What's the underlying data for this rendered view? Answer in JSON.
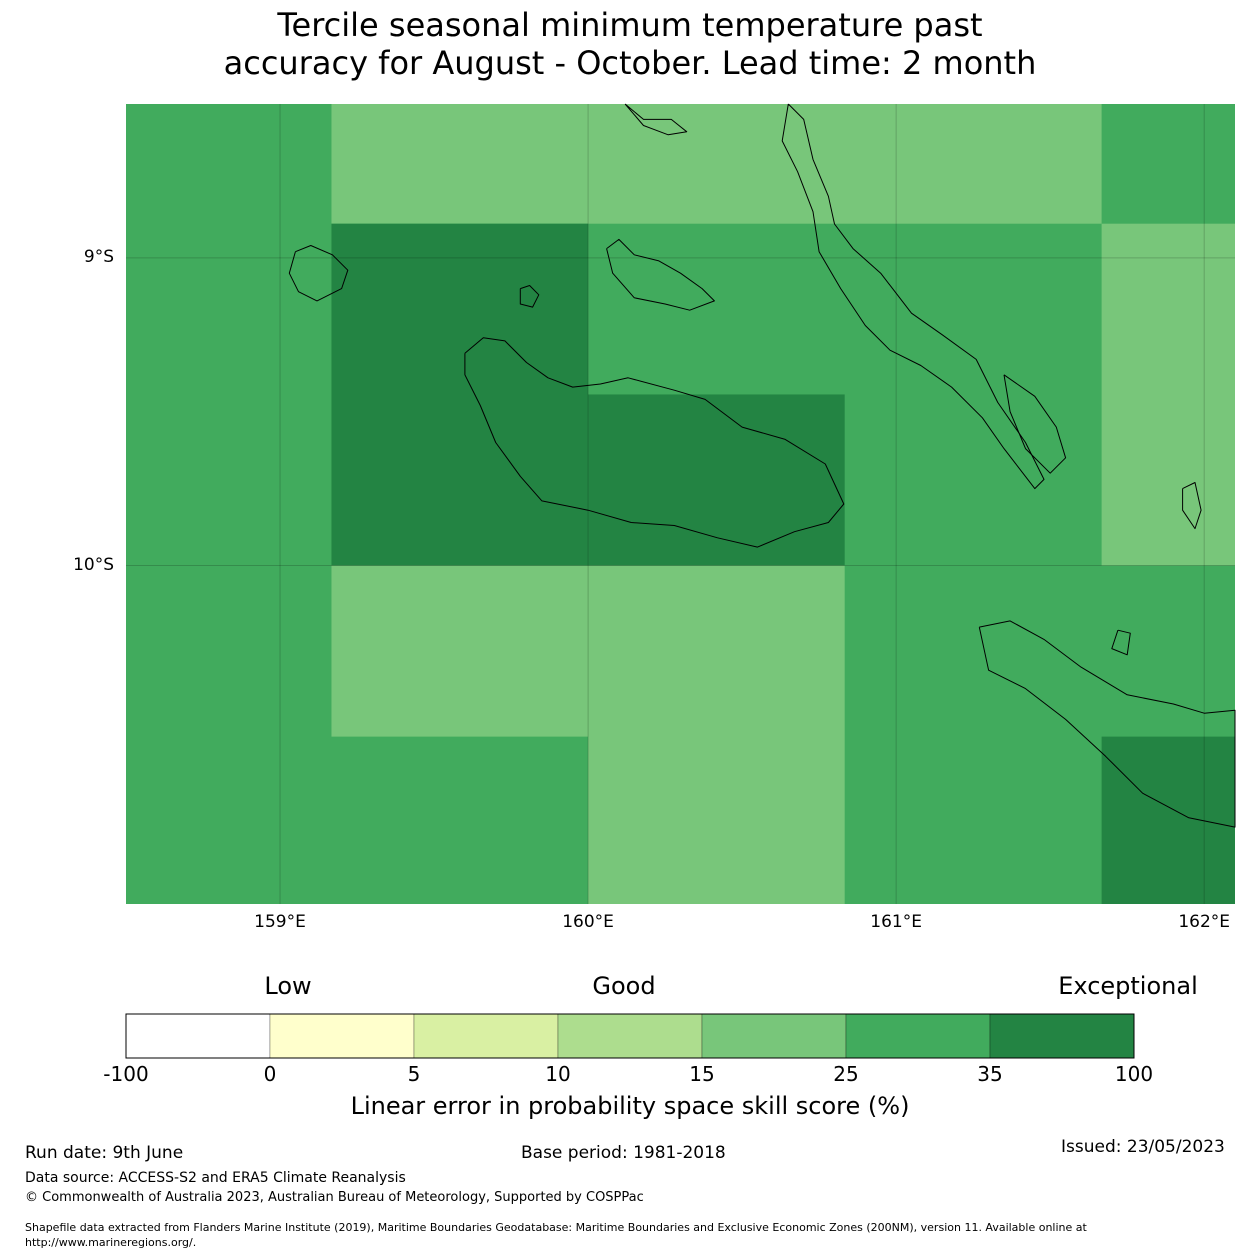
{
  "title": {
    "line1": "Tercile seasonal minimum temperature past",
    "line2": "accuracy for August - October. Lead time: 2 month"
  },
  "map": {
    "lon_range": [
      158.5,
      162.1
    ],
    "lat_range": [
      -8.5,
      -11.1
    ],
    "lat_ticks": [
      {
        "value": -9,
        "label": "9°S"
      },
      {
        "value": -10,
        "label": "10°S"
      }
    ],
    "lon_ticks": [
      {
        "value": 159,
        "label": "159°E"
      },
      {
        "value": 160,
        "label": "160°E"
      },
      {
        "value": 161,
        "label": "161°E"
      },
      {
        "value": 162,
        "label": "162°E"
      }
    ],
    "gridlines": true,
    "colors": {
      "lightgreen": "#78c67a",
      "midgreen": "#41ab5d",
      "darkgreen": "#238443"
    },
    "skill_cells": [
      {
        "lon_min": 158.5,
        "lon_max": 162.1,
        "lat_max": -8.5,
        "lat_min": -11.1,
        "class": "midgreen"
      },
      {
        "lon_min": 159.167,
        "lon_max": 161.667,
        "lat_max": -8.5,
        "lat_min": -8.889,
        "class": "lightgreen"
      },
      {
        "lon_min": 159.167,
        "lon_max": 160.0,
        "lat_max": -8.889,
        "lat_min": -10.0,
        "class": "darkgreen"
      },
      {
        "lon_min": 160.0,
        "lon_max": 160.833,
        "lat_max": -9.444,
        "lat_min": -10.0,
        "class": "darkgreen"
      },
      {
        "lon_min": 161.667,
        "lon_max": 162.1,
        "lat_max": -8.889,
        "lat_min": -10.0,
        "class": "lightgreen"
      },
      {
        "lon_min": 159.167,
        "lon_max": 160.0,
        "lat_max": -10.0,
        "lat_min": -10.556,
        "class": "lightgreen"
      },
      {
        "lon_min": 160.0,
        "lon_max": 160.833,
        "lat_max": -10.0,
        "lat_min": -11.1,
        "class": "lightgreen"
      },
      {
        "lon_min": 161.667,
        "lon_max": 162.1,
        "lat_max": -10.556,
        "lat_min": -11.1,
        "class": "darkgreen"
      }
    ],
    "coastlines": [
      {
        "name": "guadalcanal",
        "points": [
          [
            159.6,
            -9.31
          ],
          [
            159.66,
            -9.26
          ],
          [
            159.73,
            -9.27
          ],
          [
            159.8,
            -9.34
          ],
          [
            159.87,
            -9.39
          ],
          [
            159.95,
            -9.42
          ],
          [
            160.04,
            -9.41
          ],
          [
            160.13,
            -9.39
          ],
          [
            160.28,
            -9.43
          ],
          [
            160.38,
            -9.46
          ],
          [
            160.5,
            -9.55
          ],
          [
            160.64,
            -9.59
          ],
          [
            160.77,
            -9.67
          ],
          [
            160.83,
            -9.8
          ],
          [
            160.78,
            -9.86
          ],
          [
            160.67,
            -9.89
          ],
          [
            160.55,
            -9.94
          ],
          [
            160.42,
            -9.91
          ],
          [
            160.28,
            -9.87
          ],
          [
            160.14,
            -9.86
          ],
          [
            160.0,
            -9.82
          ],
          [
            159.85,
            -9.79
          ],
          [
            159.78,
            -9.71
          ],
          [
            159.7,
            -9.6
          ],
          [
            159.65,
            -9.48
          ],
          [
            159.6,
            -9.38
          ],
          [
            159.6,
            -9.31
          ]
        ]
      },
      {
        "name": "florida-islands",
        "points": [
          [
            160.06,
            -8.97
          ],
          [
            160.1,
            -8.94
          ],
          [
            160.15,
            -8.99
          ],
          [
            160.23,
            -9.01
          ],
          [
            160.3,
            -9.05
          ],
          [
            160.37,
            -9.1
          ],
          [
            160.41,
            -9.14
          ],
          [
            160.33,
            -9.17
          ],
          [
            160.25,
            -9.15
          ],
          [
            160.15,
            -9.13
          ],
          [
            160.08,
            -9.05
          ],
          [
            160.06,
            -8.97
          ]
        ]
      },
      {
        "name": "russell-islands",
        "points": [
          [
            159.05,
            -8.98
          ],
          [
            159.1,
            -8.96
          ],
          [
            159.17,
            -8.99
          ],
          [
            159.22,
            -9.04
          ],
          [
            159.2,
            -9.1
          ],
          [
            159.12,
            -9.14
          ],
          [
            159.06,
            -9.11
          ],
          [
            159.03,
            -9.05
          ],
          [
            159.05,
            -8.98
          ]
        ]
      },
      {
        "name": "savo-island",
        "points": [
          [
            159.78,
            -9.1
          ],
          [
            159.81,
            -9.09
          ],
          [
            159.84,
            -9.12
          ],
          [
            159.82,
            -9.16
          ],
          [
            159.78,
            -9.15
          ],
          [
            159.78,
            -9.1
          ]
        ]
      },
      {
        "name": "malaita",
        "points": [
          [
            160.65,
            -8.5
          ],
          [
            160.7,
            -8.55
          ],
          [
            160.73,
            -8.68
          ],
          [
            160.78,
            -8.8
          ],
          [
            160.8,
            -8.89
          ],
          [
            160.86,
            -8.97
          ],
          [
            160.95,
            -9.05
          ],
          [
            161.05,
            -9.18
          ],
          [
            161.15,
            -9.25
          ],
          [
            161.26,
            -9.33
          ],
          [
            161.33,
            -9.47
          ],
          [
            161.42,
            -9.6
          ],
          [
            161.48,
            -9.72
          ],
          [
            161.45,
            -9.75
          ],
          [
            161.35,
            -9.62
          ],
          [
            161.28,
            -9.52
          ],
          [
            161.18,
            -9.42
          ],
          [
            161.08,
            -9.35
          ],
          [
            160.98,
            -9.3
          ],
          [
            160.9,
            -9.22
          ],
          [
            160.82,
            -9.1
          ],
          [
            160.75,
            -8.98
          ],
          [
            160.73,
            -8.85
          ],
          [
            160.68,
            -8.72
          ],
          [
            160.63,
            -8.62
          ],
          [
            160.65,
            -8.5
          ]
        ]
      },
      {
        "name": "small-malaita",
        "points": [
          [
            161.35,
            -9.38
          ],
          [
            161.45,
            -9.45
          ],
          [
            161.52,
            -9.55
          ],
          [
            161.55,
            -9.65
          ],
          [
            161.5,
            -9.7
          ],
          [
            161.42,
            -9.62
          ],
          [
            161.37,
            -9.5
          ],
          [
            161.35,
            -9.38
          ]
        ]
      },
      {
        "name": "ulawa",
        "points": [
          [
            161.93,
            -9.75
          ],
          [
            161.97,
            -9.73
          ],
          [
            161.99,
            -9.82
          ],
          [
            161.97,
            -9.88
          ],
          [
            161.93,
            -9.82
          ],
          [
            161.93,
            -9.75
          ]
        ]
      },
      {
        "name": "makira",
        "points": [
          [
            161.27,
            -10.2
          ],
          [
            161.37,
            -10.18
          ],
          [
            161.48,
            -10.24
          ],
          [
            161.6,
            -10.33
          ],
          [
            161.75,
            -10.42
          ],
          [
            161.9,
            -10.45
          ],
          [
            162.0,
            -10.48
          ],
          [
            162.1,
            -10.47
          ],
          [
            162.1,
            -10.85
          ],
          [
            161.95,
            -10.82
          ],
          [
            161.8,
            -10.74
          ],
          [
            161.68,
            -10.62
          ],
          [
            161.55,
            -10.5
          ],
          [
            161.42,
            -10.4
          ],
          [
            161.3,
            -10.34
          ],
          [
            161.27,
            -10.2
          ]
        ]
      },
      {
        "name": "ugi",
        "points": [
          [
            161.72,
            -10.21
          ],
          [
            161.76,
            -10.22
          ],
          [
            161.75,
            -10.29
          ],
          [
            161.7,
            -10.27
          ],
          [
            161.72,
            -10.21
          ]
        ]
      },
      {
        "name": "north-islets",
        "points": [
          [
            160.12,
            -8.5
          ],
          [
            160.18,
            -8.55
          ],
          [
            160.27,
            -8.55
          ],
          [
            160.32,
            -8.59
          ],
          [
            160.26,
            -8.6
          ],
          [
            160.18,
            -8.57
          ],
          [
            160.12,
            -8.5
          ]
        ]
      }
    ]
  },
  "colorbar": {
    "category_labels": [
      "Low",
      "Good",
      "Exceptional"
    ],
    "ticks": [
      "-100",
      "0",
      "5",
      "10",
      "15",
      "25",
      "35",
      "100"
    ],
    "colors": [
      "#ffffff",
      "#ffffcc",
      "#d9f0a3",
      "#addd8e",
      "#78c67a",
      "#41ab5d",
      "#238443"
    ],
    "label": "Linear error in probability space skill score (%)"
  },
  "footer": {
    "run_date": "Run date: 9th June",
    "base_period": "Base period: 1981-2018",
    "issued": "Issued: 23/05/2023",
    "data_source": "Data source: ACCESS-S2 and ERA5 Climate Reanalysis",
    "copyright": "© Commonwealth of Australia 2023, Australian Bureau of Meteorology, Supported by COSPPac",
    "shapefile_line1": "Shapefile data extracted from Flanders Marine Institute (2019), Maritime Boundaries Geodatabase: Maritime Boundaries and Exclusive Economic Zones (200NM), version 11. Available online at",
    "shapefile_line2": "http://www.marineregions.org/."
  }
}
